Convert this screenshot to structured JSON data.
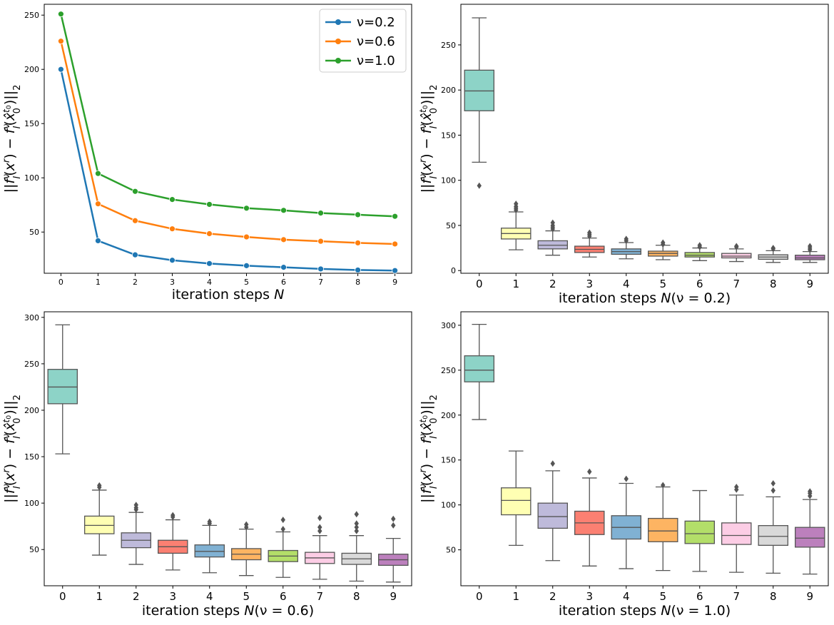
{
  "figure_title": "",
  "chart_data": [
    {
      "type": "line",
      "panel": "top-left",
      "title": "",
      "xlabel_prefix": "iteration steps ",
      "xlabel_var": "N",
      "xlabel_suffix": "",
      "ylabel": "||f_I^ν(x^r) − f_I^ν(x̂_0^{t_0})||_2",
      "x": [
        0,
        1,
        2,
        3,
        4,
        5,
        6,
        7,
        8,
        9
      ],
      "xlim": [
        -0.45,
        9.45
      ],
      "ylim": [
        12,
        260
      ],
      "yticks": [
        50,
        100,
        150,
        200,
        250
      ],
      "legend_position": "top-right",
      "series": [
        {
          "name": "ν=0.2",
          "color": "#1f77b4",
          "values": [
            200,
            42,
            29,
            24,
            21,
            19,
            17.5,
            16,
            15,
            14.5
          ]
        },
        {
          "name": "ν=0.6",
          "color": "#ff7f0e",
          "values": [
            226,
            76,
            60.5,
            53,
            48.5,
            45.5,
            43,
            41.5,
            40,
            39
          ]
        },
        {
          "name": "ν=1.0",
          "color": "#2ca02c",
          "values": [
            251,
            104,
            87.5,
            80,
            75.5,
            72,
            70,
            67.5,
            66,
            64.5
          ]
        }
      ]
    },
    {
      "type": "box",
      "panel": "top-right",
      "xlabel_prefix": "iteration steps ",
      "xlabel_var": "N",
      "xlabel_suffix": "(ν = 0.2)",
      "ylabel": "||f_I^ν(x^r) − f_I^ν(x̂_0^{t_0})||_2",
      "categories": [
        "0",
        "1",
        "2",
        "3",
        "4",
        "5",
        "6",
        "7",
        "8",
        "9"
      ],
      "ylim": [
        -3,
        295
      ],
      "yticks": [
        0,
        50,
        100,
        150,
        200,
        250
      ],
      "boxes": [
        {
          "whislo": 120,
          "q1": 177,
          "med": 199,
          "q3": 222,
          "whishi": 280,
          "fliers": [
            94
          ]
        },
        {
          "whislo": 23,
          "q1": 35,
          "med": 41,
          "q3": 47,
          "whishi": 65,
          "fliers": [
            67,
            69,
            71,
            74
          ]
        },
        {
          "whislo": 17,
          "q1": 24,
          "med": 28,
          "q3": 33,
          "whishi": 44,
          "fliers": [
            46,
            48,
            50,
            53
          ]
        },
        {
          "whislo": 15,
          "q1": 20,
          "med": 23.5,
          "q3": 27,
          "whishi": 36,
          "fliers": [
            38,
            40,
            42
          ]
        },
        {
          "whislo": 13,
          "q1": 18,
          "med": 21,
          "q3": 24,
          "whishi": 31,
          "fliers": [
            33,
            35
          ]
        },
        {
          "whislo": 12,
          "q1": 16,
          "med": 19,
          "q3": 21.5,
          "whishi": 28,
          "fliers": [
            29,
            31
          ]
        },
        {
          "whislo": 11,
          "q1": 15,
          "med": 17,
          "q3": 20,
          "whishi": 25,
          "fliers": [
            26,
            28
          ]
        },
        {
          "whislo": 10,
          "q1": 14,
          "med": 16,
          "q3": 19,
          "whishi": 24,
          "fliers": [
            26,
            27
          ]
        },
        {
          "whislo": 9,
          "q1": 12.5,
          "med": 15,
          "q3": 17.5,
          "whishi": 22,
          "fliers": [
            24,
            25
          ]
        },
        {
          "whislo": 9,
          "q1": 12,
          "med": 14,
          "q3": 17,
          "whishi": 21,
          "fliers": [
            23,
            25,
            27
          ]
        }
      ],
      "colors": [
        "#8dd3c7",
        "#ffffb3",
        "#bebada",
        "#fb8072",
        "#80b1d3",
        "#fdb462",
        "#b3de69",
        "#fccde5",
        "#d9d9d9",
        "#bc80bd"
      ]
    },
    {
      "type": "box",
      "panel": "bottom-left",
      "xlabel_prefix": "iteration steps ",
      "xlabel_var": "N",
      "xlabel_suffix": "(ν = 0.6)",
      "ylabel": "||f_I^ν(x^r) − f_I^ν(x̂_0^{t_0})||_2",
      "categories": [
        "0",
        "1",
        "2",
        "3",
        "4",
        "5",
        "6",
        "7",
        "8",
        "9"
      ],
      "ylim": [
        11,
        306
      ],
      "yticks": [
        50,
        100,
        150,
        200,
        250,
        300
      ],
      "boxes": [
        {
          "whislo": 153,
          "q1": 207,
          "med": 225,
          "q3": 244,
          "whishi": 292,
          "fliers": []
        },
        {
          "whislo": 44,
          "q1": 67,
          "med": 76,
          "q3": 86,
          "whishi": 114,
          "fliers": [
            117,
            119
          ]
        },
        {
          "whislo": 34,
          "q1": 52,
          "med": 60,
          "q3": 68,
          "whishi": 90,
          "fliers": [
            93,
            95,
            98
          ]
        },
        {
          "whislo": 28,
          "q1": 46,
          "med": 53,
          "q3": 60,
          "whishi": 82,
          "fliers": [
            85,
            87
          ]
        },
        {
          "whislo": 25,
          "q1": 42,
          "med": 48,
          "q3": 55,
          "whishi": 76,
          "fliers": [
            78,
            80
          ]
        },
        {
          "whislo": 22,
          "q1": 39,
          "med": 45,
          "q3": 51,
          "whishi": 72,
          "fliers": [
            74,
            77
          ]
        },
        {
          "whislo": 20,
          "q1": 37,
          "med": 43,
          "q3": 49,
          "whishi": 69,
          "fliers": [
            72,
            82
          ]
        },
        {
          "whislo": 18,
          "q1": 35,
          "med": 41,
          "q3": 47,
          "whishi": 65,
          "fliers": [
            70,
            74,
            84
          ]
        },
        {
          "whislo": 16,
          "q1": 34,
          "med": 40,
          "q3": 46,
          "whishi": 65,
          "fliers": [
            70,
            74,
            78,
            88
          ]
        },
        {
          "whislo": 15,
          "q1": 33,
          "med": 39,
          "q3": 45,
          "whishi": 62,
          "fliers": [
            76,
            83
          ]
        }
      ],
      "colors": [
        "#8dd3c7",
        "#ffffb3",
        "#bebada",
        "#fb8072",
        "#80b1d3",
        "#fdb462",
        "#b3de69",
        "#fccde5",
        "#d9d9d9",
        "#bc80bd"
      ]
    },
    {
      "type": "box",
      "panel": "bottom-right",
      "xlabel_prefix": "iteration steps ",
      "xlabel_var": "N",
      "xlabel_suffix": "(ν = 1.0)",
      "ylabel": "||f_I^ν(x^r) − f_I^ν(x̂_0^{t_0})||_2",
      "categories": [
        "0",
        "1",
        "2",
        "3",
        "4",
        "5",
        "6",
        "7",
        "8",
        "9"
      ],
      "ylim": [
        10,
        315
      ],
      "yticks": [
        50,
        100,
        150,
        200,
        250,
        300
      ],
      "boxes": [
        {
          "whislo": 195,
          "q1": 237,
          "med": 250,
          "q3": 266,
          "whishi": 301,
          "fliers": []
        },
        {
          "whislo": 55,
          "q1": 89,
          "med": 105,
          "q3": 119,
          "whishi": 160,
          "fliers": []
        },
        {
          "whislo": 38,
          "q1": 74,
          "med": 87,
          "q3": 102,
          "whishi": 138,
          "fliers": [
            146
          ]
        },
        {
          "whislo": 32,
          "q1": 67,
          "med": 80,
          "q3": 93,
          "whishi": 130,
          "fliers": [
            137
          ]
        },
        {
          "whislo": 29,
          "q1": 62,
          "med": 75,
          "q3": 88,
          "whishi": 124,
          "fliers": [
            129
          ]
        },
        {
          "whislo": 27,
          "q1": 59,
          "med": 71,
          "q3": 85,
          "whishi": 120,
          "fliers": [
            122
          ]
        },
        {
          "whislo": 26,
          "q1": 57,
          "med": 68,
          "q3": 82,
          "whishi": 116,
          "fliers": []
        },
        {
          "whislo": 25,
          "q1": 56,
          "med": 66,
          "q3": 80,
          "whishi": 111,
          "fliers": [
            117,
            120
          ]
        },
        {
          "whislo": 24,
          "q1": 55,
          "med": 65,
          "q3": 77,
          "whishi": 109,
          "fliers": [
            116,
            124
          ]
        },
        {
          "whislo": 23,
          "q1": 53,
          "med": 63,
          "q3": 75,
          "whishi": 106,
          "fliers": [
            110,
            113,
            115
          ]
        }
      ],
      "colors": [
        "#8dd3c7",
        "#ffffb3",
        "#bebada",
        "#fb8072",
        "#80b1d3",
        "#fdb462",
        "#b3de69",
        "#fccde5",
        "#d9d9d9",
        "#bc80bd"
      ]
    }
  ]
}
